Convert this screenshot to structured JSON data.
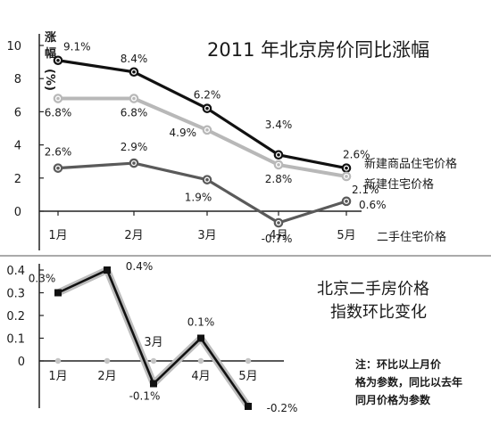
{
  "chart_data": [
    {
      "type": "line",
      "title": "2011 年北京房价同比涨幅",
      "ylabel_lines": [
        "涨",
        "幅",
        "(%)"
      ],
      "categories": [
        "1月",
        "2月",
        "3月",
        "4月",
        "5月"
      ],
      "ylim": [
        0,
        10
      ],
      "yticks": [
        "0",
        "2",
        "4",
        "6",
        "8",
        "10"
      ],
      "grid": false,
      "series": [
        {
          "name": "新建商品住宅价格",
          "color": "#111111",
          "values": [
            9.1,
            8.4,
            6.2,
            3.4,
            2.6
          ],
          "labels": [
            "9.1%",
            "8.4%",
            "6.2%",
            "3.4%",
            "2.6%"
          ]
        },
        {
          "name": "新建住宅价格",
          "color": "#b8b8b8",
          "values": [
            6.8,
            6.8,
            4.9,
            2.8,
            2.1
          ],
          "labels": [
            "6.8%",
            "6.8%",
            "4.9%",
            "2.8%",
            "2.1%"
          ]
        },
        {
          "name": "二手住宅价格",
          "color": "#5a5a5a",
          "values": [
            2.6,
            2.9,
            1.9,
            -0.7,
            0.6
          ],
          "labels": [
            "2.6%",
            "2.9%",
            "1.9%",
            "-0.7%",
            "0.6%"
          ]
        }
      ]
    },
    {
      "type": "line",
      "title_lines": [
        "北京二手房价格",
        "指数环比变化"
      ],
      "categories": [
        "1月",
        "2月",
        "3月",
        "4月",
        "5月"
      ],
      "ylim": [
        -0.2,
        0.4
      ],
      "yticks": [
        "0",
        "0.1",
        "0.2",
        "0.3",
        "0.4"
      ],
      "grid": false,
      "series": [
        {
          "color": "#111111",
          "values": [
            0.3,
            0.4,
            -0.1,
            0.1,
            -0.2
          ],
          "labels": [
            "0.3%",
            "0.4%",
            "-0.1%",
            "0.1%",
            "-0.2%"
          ]
        }
      ],
      "note_lines": [
        "注：环比以上月价",
        "格为参数，同比以去年",
        "同月价格为参数"
      ]
    }
  ]
}
